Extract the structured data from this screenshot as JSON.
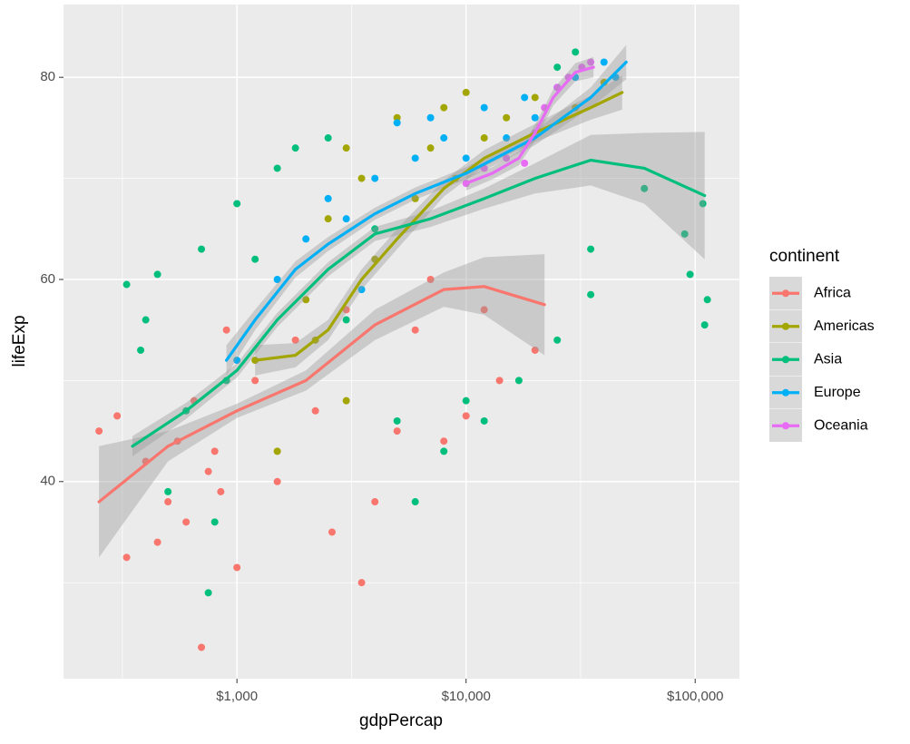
{
  "chart_data": {
    "type": "scatter",
    "x_label": "gdpPercap",
    "y_label": "lifeExp",
    "log_x": true,
    "grid": true,
    "panel_color": "#EBEBEB",
    "legend_title": "continent",
    "legend_position": "right",
    "xlim": [
      175,
      156000
    ],
    "ylim": [
      20.5,
      87.2
    ],
    "xticks": [
      {
        "value": 1000,
        "label": "$1,000"
      },
      {
        "value": 10000,
        "label": "$10,000"
      },
      {
        "value": 100000,
        "label": "$100,000"
      }
    ],
    "x_minor_ticks": [
      316.2,
      3162.3,
      31622.8
    ],
    "yticks": [
      40,
      60,
      80
    ],
    "y_minor_ticks": [
      30,
      50,
      70
    ],
    "series": [
      {
        "name": "Africa",
        "color": "#F8766D",
        "x": [
          250,
          300,
          330,
          400,
          450,
          500,
          550,
          600,
          650,
          700,
          750,
          800,
          850,
          900,
          1000,
          1200,
          1500,
          1800,
          2200,
          2600,
          3000,
          3500,
          4000,
          5000,
          6000,
          8000,
          10000,
          12000,
          14000,
          20000,
          7000
        ],
        "values": [
          45,
          46.5,
          32.5,
          42,
          34,
          38,
          44,
          36,
          48,
          23.6,
          41,
          43,
          39,
          55,
          31.5,
          50,
          40,
          54,
          47,
          35,
          57,
          30,
          38,
          45,
          55,
          44,
          46.5,
          57,
          50,
          53,
          60
        ],
        "smooth_x": [
          250,
          500,
          1000,
          2000,
          4000,
          8000,
          12000,
          22000
        ],
        "smooth": [
          38,
          43.5,
          47,
          50,
          55.5,
          59,
          59.3,
          57.5
        ],
        "smooth_lower": [
          32.5,
          42,
          46.3,
          49,
          54,
          57.3,
          56.5,
          52.5
        ],
        "smooth_upper": [
          43.5,
          45,
          47.7,
          51,
          57,
          60.7,
          62.2,
          62.5
        ]
      },
      {
        "name": "Americas",
        "color": "#A3A500",
        "x": [
          1200,
          1500,
          2000,
          2500,
          3000,
          3500,
          4000,
          5000,
          6000,
          7000,
          8000,
          9000,
          10000,
          12000,
          15000,
          20000,
          30000,
          40000,
          3000,
          2200
        ],
        "values": [
          52,
          43,
          58,
          66,
          48,
          70,
          62,
          76,
          68,
          73,
          77,
          70,
          78.5,
          74,
          76,
          78,
          77,
          79.5,
          73,
          54
        ],
        "smooth_x": [
          1200,
          1800,
          2500,
          3500,
          5000,
          8000,
          12000,
          20000,
          35000,
          48000
        ],
        "smooth": [
          52,
          52.5,
          55,
          60,
          64,
          69,
          72,
          74.5,
          77,
          78.5
        ],
        "smooth_lower": [
          50.5,
          51.3,
          54,
          59,
          63,
          68.2,
          71.2,
          73.6,
          75.8,
          76.8
        ],
        "smooth_upper": [
          53.5,
          53.7,
          56,
          61,
          65,
          69.8,
          72.8,
          75.4,
          78.2,
          80.2
        ]
      },
      {
        "name": "Asia",
        "color": "#00BF7D",
        "x": [
          330,
          380,
          400,
          450,
          500,
          600,
          700,
          750,
          800,
          900,
          1000,
          1200,
          1500,
          1800,
          2500,
          3000,
          4000,
          5000,
          6000,
          8000,
          10000,
          12000,
          17000,
          25000,
          35000,
          35000,
          60000,
          90000,
          95000,
          110000,
          113000,
          108000,
          25000,
          30000
        ],
        "values": [
          59.5,
          53,
          56,
          60.5,
          39,
          47,
          63,
          29,
          36,
          50,
          67.5,
          62,
          71,
          73,
          74,
          56,
          65,
          46,
          38,
          43,
          48,
          46,
          50,
          54,
          63,
          58.5,
          69,
          64.5,
          60.5,
          55.5,
          58,
          67.5,
          81,
          82.5
        ],
        "smooth_x": [
          350,
          600,
          1000,
          1500,
          2500,
          4000,
          7000,
          12000,
          20000,
          35000,
          60000,
          110000
        ],
        "smooth": [
          43.5,
          47,
          51,
          56,
          61,
          64.5,
          66,
          68,
          70,
          71.8,
          71,
          68.3
        ],
        "smooth_lower": [
          42.5,
          46.2,
          50.3,
          55.3,
          60.3,
          63.8,
          65.2,
          67,
          68.5,
          69.3,
          67.5,
          62
        ],
        "smooth_upper": [
          44.5,
          47.8,
          51.7,
          56.7,
          61.7,
          65.2,
          66.8,
          69,
          71.5,
          74.3,
          74.5,
          74.6
        ]
      },
      {
        "name": "Europe",
        "color": "#00B0F6",
        "x": [
          1000,
          1500,
          2000,
          2500,
          3000,
          4000,
          5000,
          6000,
          8000,
          10000,
          15000,
          20000,
          25000,
          30000,
          40000,
          45000,
          3500,
          7000,
          12000,
          18000
        ],
        "values": [
          52,
          60,
          64,
          68,
          66,
          70,
          75.5,
          72,
          74,
          72,
          74,
          76,
          79,
          80,
          81.5,
          80,
          59,
          76,
          77,
          78
        ],
        "smooth_x": [
          900,
          1200,
          1800,
          2500,
          4000,
          6000,
          10000,
          20000,
          35000,
          50000
        ],
        "smooth": [
          52,
          56,
          61,
          63.5,
          66.5,
          68.5,
          70.5,
          74,
          78,
          81.5
        ],
        "smooth_lower": [
          50.5,
          55,
          60.2,
          62.8,
          65.9,
          67.9,
          69.9,
          73.3,
          77,
          79.8
        ],
        "smooth_upper": [
          53.5,
          57,
          61.8,
          64.2,
          67.1,
          69.1,
          71.1,
          74.7,
          79,
          83.2
        ]
      },
      {
        "name": "Oceania",
        "color": "#E76BF3",
        "x": [
          10000,
          12000,
          15000,
          18000,
          20000,
          22000,
          25000,
          28000,
          32000,
          35000
        ],
        "values": [
          69.5,
          71,
          72,
          71.5,
          74.5,
          77,
          79,
          80,
          81,
          81.5
        ],
        "smooth_x": [
          10000,
          13000,
          17000,
          20000,
          24000,
          30000,
          36000
        ],
        "smooth": [
          69.5,
          70.5,
          72,
          74.5,
          78,
          80.5,
          81
        ],
        "smooth_lower": [
          68.8,
          69.9,
          71.3,
          73.7,
          77.2,
          79.6,
          80
        ],
        "smooth_upper": [
          70.2,
          71.1,
          72.7,
          75.3,
          78.8,
          81.4,
          82
        ]
      }
    ]
  }
}
